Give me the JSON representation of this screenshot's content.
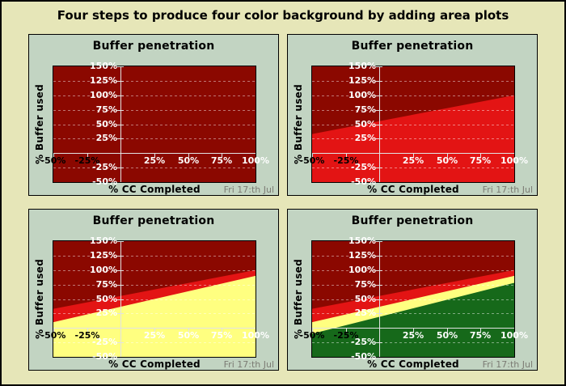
{
  "page": {
    "title": "Four steps to produce four color background by adding area plots"
  },
  "colors": {
    "page_background": "#e6e6b8",
    "panel_background": "#c2d4c2",
    "plot_background_dark_red": "#8b0800",
    "red_zone": "#e31414",
    "yellow_zone": "#ffff80",
    "green_zone": "#16691a",
    "grid_line": "#ffffff",
    "axis_line": "#e2e2e2",
    "tick_text_light": "#ffffff",
    "tick_text_dark": "#000000",
    "footer_text": "#7c7c74"
  },
  "chart_common": {
    "title": "Buffer penetration",
    "xlabel": "% CC Completed",
    "ylabel": "% Buffer used",
    "footer": "Fri 17:th Jul",
    "xlim": [
      -50,
      100
    ],
    "ylim": [
      -50,
      150
    ],
    "grid": "horizontal-dashed",
    "x_ticks": [
      {
        "value": -50,
        "label": "-50%",
        "text_color": "#000000"
      },
      {
        "value": -25,
        "label": "-25%",
        "text_color": "#000000"
      },
      {
        "value": 25,
        "label": "25%",
        "text_color": "#ffffff"
      },
      {
        "value": 50,
        "label": "50%",
        "text_color": "#ffffff"
      },
      {
        "value": 75,
        "label": "75%",
        "text_color": "#ffffff"
      },
      {
        "value": 100,
        "label": "100%",
        "text_color": "#ffffff"
      }
    ],
    "y_ticks": [
      {
        "value": 150,
        "label": "150%"
      },
      {
        "value": 125,
        "label": "125%"
      },
      {
        "value": 100,
        "label": "100%"
      },
      {
        "value": 75,
        "label": "75%"
      },
      {
        "value": 50,
        "label": "50%"
      },
      {
        "value": 25,
        "label": "25%"
      },
      {
        "value": -25,
        "label": "-25%"
      },
      {
        "value": -50,
        "label": "-50%"
      }
    ],
    "grid_values": [
      125,
      100,
      75,
      50,
      25,
      -25
    ]
  },
  "chart_data": [
    {
      "type": "area",
      "step": 1,
      "title": "Buffer penetration",
      "background": "#8b0800",
      "series": []
    },
    {
      "type": "area",
      "step": 2,
      "title": "Buffer penetration",
      "background": "#8b0800",
      "series": [
        {
          "name": "red zone",
          "color": "#e31414",
          "x": [
            -50,
            100
          ],
          "y": [
            33,
            100
          ]
        }
      ]
    },
    {
      "type": "area",
      "step": 3,
      "title": "Buffer penetration",
      "background": "#8b0800",
      "series": [
        {
          "name": "red zone",
          "color": "#e31414",
          "x": [
            -50,
            100
          ],
          "y": [
            33,
            100
          ]
        },
        {
          "name": "yellow zone",
          "color": "#ffff80",
          "x": [
            -50,
            100
          ],
          "y": [
            10,
            90
          ]
        }
      ]
    },
    {
      "type": "area",
      "step": 4,
      "title": "Buffer penetration",
      "background": "#8b0800",
      "series": [
        {
          "name": "red zone",
          "color": "#e31414",
          "x": [
            -50,
            100
          ],
          "y": [
            33,
            100
          ]
        },
        {
          "name": "yellow zone",
          "color": "#ffff80",
          "x": [
            -50,
            100
          ],
          "y": [
            10,
            90
          ]
        },
        {
          "name": "green zone",
          "color": "#16691a",
          "x": [
            -50,
            100
          ],
          "y": [
            -10,
            78
          ]
        }
      ]
    }
  ]
}
